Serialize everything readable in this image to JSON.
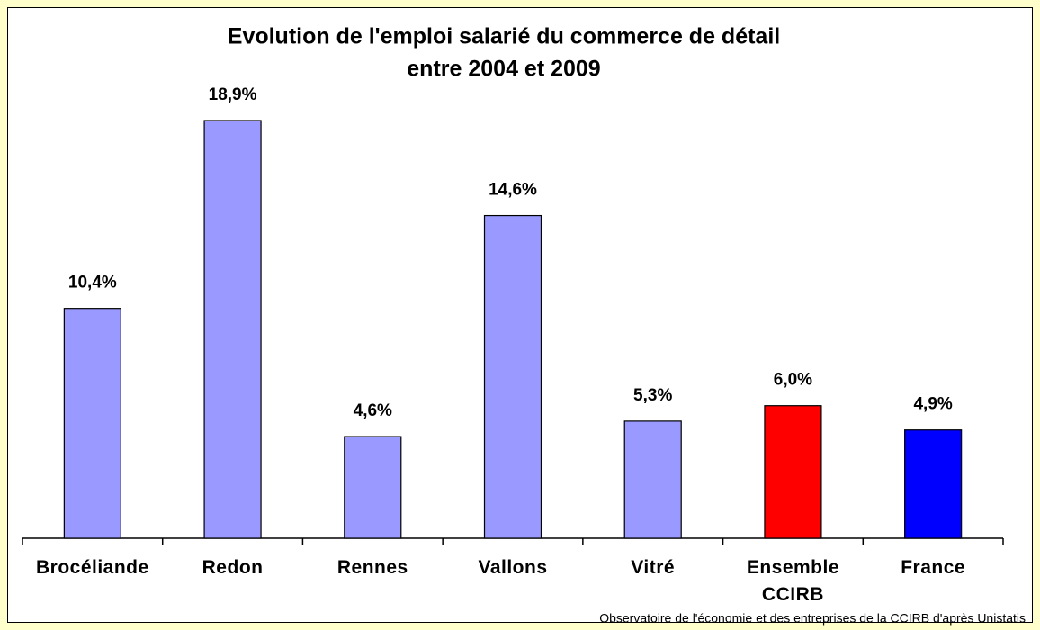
{
  "chart_data": {
    "type": "bar",
    "title": [
      "Evolution de l'emploi salarié du commerce de détail",
      "entre 2004 et 2009"
    ],
    "categories": [
      "Brocéliande",
      "Redon",
      "Rennes",
      "Vallons",
      "Vitré",
      "Ensemble CCIRB",
      "France"
    ],
    "values": [
      10.4,
      18.9,
      4.6,
      14.6,
      5.3,
      6.0,
      4.9
    ],
    "value_labels": [
      "10,4%",
      "18,9%",
      "4,6%",
      "14,6%",
      "5,3%",
      "6,0%",
      "4,9%"
    ],
    "colors": [
      "#9999ff",
      "#9999ff",
      "#9999ff",
      "#9999ff",
      "#9999ff",
      "#ff0000",
      "#0000ff"
    ],
    "source": "Observatoire de l'économie et des entreprises de la CCIRB d'après Unistatis"
  }
}
